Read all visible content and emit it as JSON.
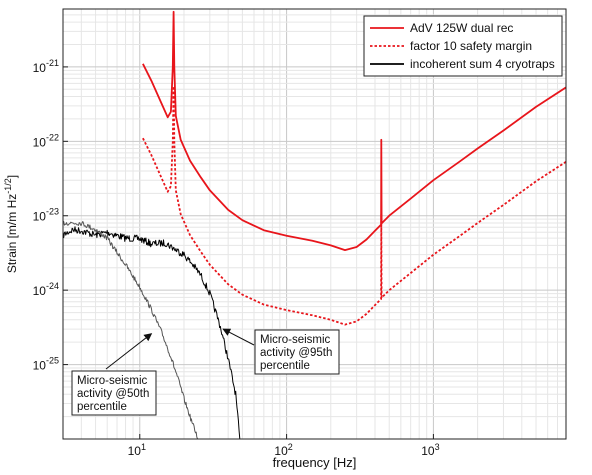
{
  "chart_data": {
    "type": "line",
    "scale": {
      "x": "log",
      "y": "log"
    },
    "xlim": [
      3,
      8000
    ],
    "ylim": [
      1e-26,
      6e-21
    ],
    "grid": true,
    "xlabel": "frequency [Hz]",
    "ylabel": {
      "base": "Strain [m/m Hz",
      "sup": "-1/2",
      "close": "]"
    },
    "x_ticks": [
      {
        "value": 10,
        "base": "10",
        "exp": "1"
      },
      {
        "value": 100,
        "base": "10",
        "exp": "2"
      },
      {
        "value": 1000,
        "base": "10",
        "exp": "3"
      }
    ],
    "y_ticks": [
      {
        "value": 1e-25,
        "base": "10",
        "exp": "-25"
      },
      {
        "value": 1e-24,
        "base": "10",
        "exp": "-24"
      },
      {
        "value": 1e-23,
        "base": "10",
        "exp": "-23"
      },
      {
        "value": 1e-22,
        "base": "10",
        "exp": "-22"
      },
      {
        "value": 1e-21,
        "base": "10",
        "exp": "-21"
      }
    ],
    "legend_position": "top-right",
    "series": [
      {
        "name": "AdV 125W dual rec",
        "color": "#e8151b",
        "style": "solid",
        "points": [
          [
            10.5,
            1.1e-21
          ],
          [
            12,
            6.5e-22
          ],
          [
            14,
            3.3e-22
          ],
          [
            15.5,
            2.1e-22
          ],
          [
            16.3,
            2.5e-22
          ],
          [
            16.8,
            1e-21
          ],
          [
            17.0,
            5.5e-21
          ],
          [
            17.2,
            1e-21
          ],
          [
            17.6,
            2.2e-22
          ],
          [
            19,
            1.05e-22
          ],
          [
            22,
            5.5e-23
          ],
          [
            26,
            3.3e-23
          ],
          [
            30,
            2.2e-23
          ],
          [
            40,
            1.2e-23
          ],
          [
            50,
            8.7e-24
          ],
          [
            70,
            6.4e-24
          ],
          [
            100,
            5.4e-24
          ],
          [
            150,
            4.6e-24
          ],
          [
            200,
            4e-24
          ],
          [
            250,
            3.45e-24
          ],
          [
            300,
            3.8e-24
          ],
          [
            350,
            4.8e-24
          ],
          [
            400,
            6.3e-24
          ],
          [
            440,
            7.6e-24
          ],
          [
            442,
            1.05e-22
          ],
          [
            444,
            7.9e-24
          ],
          [
            500,
            1e-23
          ],
          [
            700,
            1.7e-23
          ],
          [
            1000,
            3e-23
          ],
          [
            1500,
            5.3e-23
          ],
          [
            2000,
            8e-23
          ],
          [
            3000,
            1.4e-22
          ],
          [
            5000,
            2.9e-22
          ],
          [
            8000,
            5.3e-22
          ]
        ]
      },
      {
        "name": "factor 10 safety margin",
        "color": "#e8151b",
        "style": "dotted",
        "points": [
          [
            10.5,
            1.1e-22
          ],
          [
            12,
            6.5e-23
          ],
          [
            14,
            3.3e-23
          ],
          [
            15.5,
            2.1e-23
          ],
          [
            16.3,
            2.5e-23
          ],
          [
            16.8,
            1e-22
          ],
          [
            17.0,
            5.5e-22
          ],
          [
            17.2,
            1e-22
          ],
          [
            17.6,
            2.2e-23
          ],
          [
            19,
            1.05e-23
          ],
          [
            22,
            5.5e-24
          ],
          [
            26,
            3.3e-24
          ],
          [
            30,
            2.2e-24
          ],
          [
            40,
            1.2e-24
          ],
          [
            50,
            8.7e-25
          ],
          [
            70,
            6.4e-25
          ],
          [
            100,
            5.4e-25
          ],
          [
            150,
            4.6e-25
          ],
          [
            200,
            4e-25
          ],
          [
            250,
            3.45e-25
          ],
          [
            300,
            3.8e-25
          ],
          [
            350,
            4.8e-25
          ],
          [
            400,
            6.3e-25
          ],
          [
            440,
            7.6e-25
          ],
          [
            442,
            1.05e-23
          ],
          [
            444,
            7.9e-25
          ],
          [
            500,
            1e-24
          ],
          [
            700,
            1.7e-24
          ],
          [
            1000,
            3e-24
          ],
          [
            1500,
            5.3e-24
          ],
          [
            2000,
            8e-24
          ],
          [
            3000,
            1.4e-23
          ],
          [
            5000,
            2.9e-23
          ],
          [
            8000,
            5.3e-23
          ]
        ]
      },
      {
        "name": "incoherent sum 4 cryotraps",
        "color": "#000000",
        "style": "solid",
        "noisy": true,
        "points": [
          [
            3,
            5.5e-24
          ],
          [
            3.5,
            6.5e-24
          ],
          [
            4,
            6.3e-24
          ],
          [
            5,
            5.5e-24
          ],
          [
            6,
            6e-24
          ],
          [
            8,
            5e-24
          ],
          [
            10,
            4.9e-24
          ],
          [
            12,
            4.2e-24
          ],
          [
            15,
            4.3e-24
          ],
          [
            18,
            3.4e-24
          ],
          [
            20,
            3e-24
          ],
          [
            23,
            2.2e-24
          ],
          [
            26,
            1.6e-24
          ],
          [
            30,
            9e-25
          ],
          [
            35,
            3.5e-25
          ],
          [
            40,
            1.2e-25
          ],
          [
            45,
            4e-26
          ],
          [
            48,
            1e-26
          ]
        ]
      },
      {
        "name": "",
        "color": "#555555",
        "style": "solid",
        "noisy": true,
        "points": [
          [
            3,
            8e-24
          ],
          [
            4,
            8e-24
          ],
          [
            5,
            6.5e-24
          ],
          [
            6,
            5e-24
          ],
          [
            7,
            3.2e-24
          ],
          [
            8,
            2.2e-24
          ],
          [
            10,
            1.1e-24
          ],
          [
            12,
            5.5e-25
          ],
          [
            14,
            2.8e-25
          ],
          [
            16,
            1.4e-25
          ],
          [
            18,
            7e-26
          ],
          [
            20,
            3.5e-26
          ],
          [
            22,
            2e-26
          ],
          [
            25,
            1e-26
          ]
        ]
      }
    ],
    "annotations": [
      {
        "lines": [
          "Micro-seismic",
          "activity @50th",
          "percentile"
        ],
        "point_to": [
          12,
          2.6e-25
        ]
      },
      {
        "lines": [
          "Micro-seismic",
          "activity @95th",
          "percentile"
        ],
        "point_to": [
          37,
          3e-25
        ]
      }
    ]
  }
}
